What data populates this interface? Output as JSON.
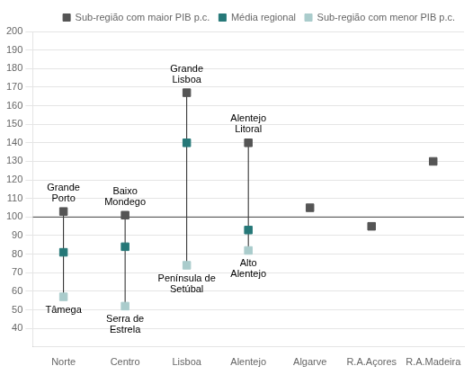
{
  "chart_data": {
    "type": "dot",
    "categories": [
      "Norte",
      "Centro",
      "Lisboa",
      "Alentejo",
      "Algarve",
      "R.A.Açores",
      "R.A.Madeira"
    ],
    "series": [
      {
        "name": "Sub-região com maior PIB p.c.",
        "color": "#555555",
        "marker": "square",
        "values": [
          103,
          101,
          167,
          140,
          105,
          95,
          130
        ],
        "labels": [
          "Grande\nPorto",
          "Baixo\nMondego",
          "Grande\nLisboa",
          "Alentejo\nLitoral",
          null,
          null,
          null
        ]
      },
      {
        "name": "Média regional",
        "color": "#267878",
        "marker": "square",
        "values": [
          81,
          84,
          140,
          93,
          null,
          null,
          null
        ]
      },
      {
        "name": "Sub-região com menor PIB p.c.",
        "color": "#aacccc",
        "marker": "square",
        "values": [
          57,
          52,
          74,
          82,
          null,
          null,
          null
        ],
        "labels": [
          "Tâmega",
          "Serra de\nEstrela",
          "Península de\nSetúbal",
          "Alto\nAlentejo",
          null,
          null,
          null
        ]
      }
    ],
    "reference_line": 100,
    "ylim": [
      30,
      200
    ],
    "yticks": [
      40,
      50,
      60,
      70,
      80,
      90,
      100,
      110,
      120,
      130,
      140,
      150,
      160,
      170,
      180,
      190,
      200
    ],
    "grid": true,
    "legend": "upper right"
  }
}
